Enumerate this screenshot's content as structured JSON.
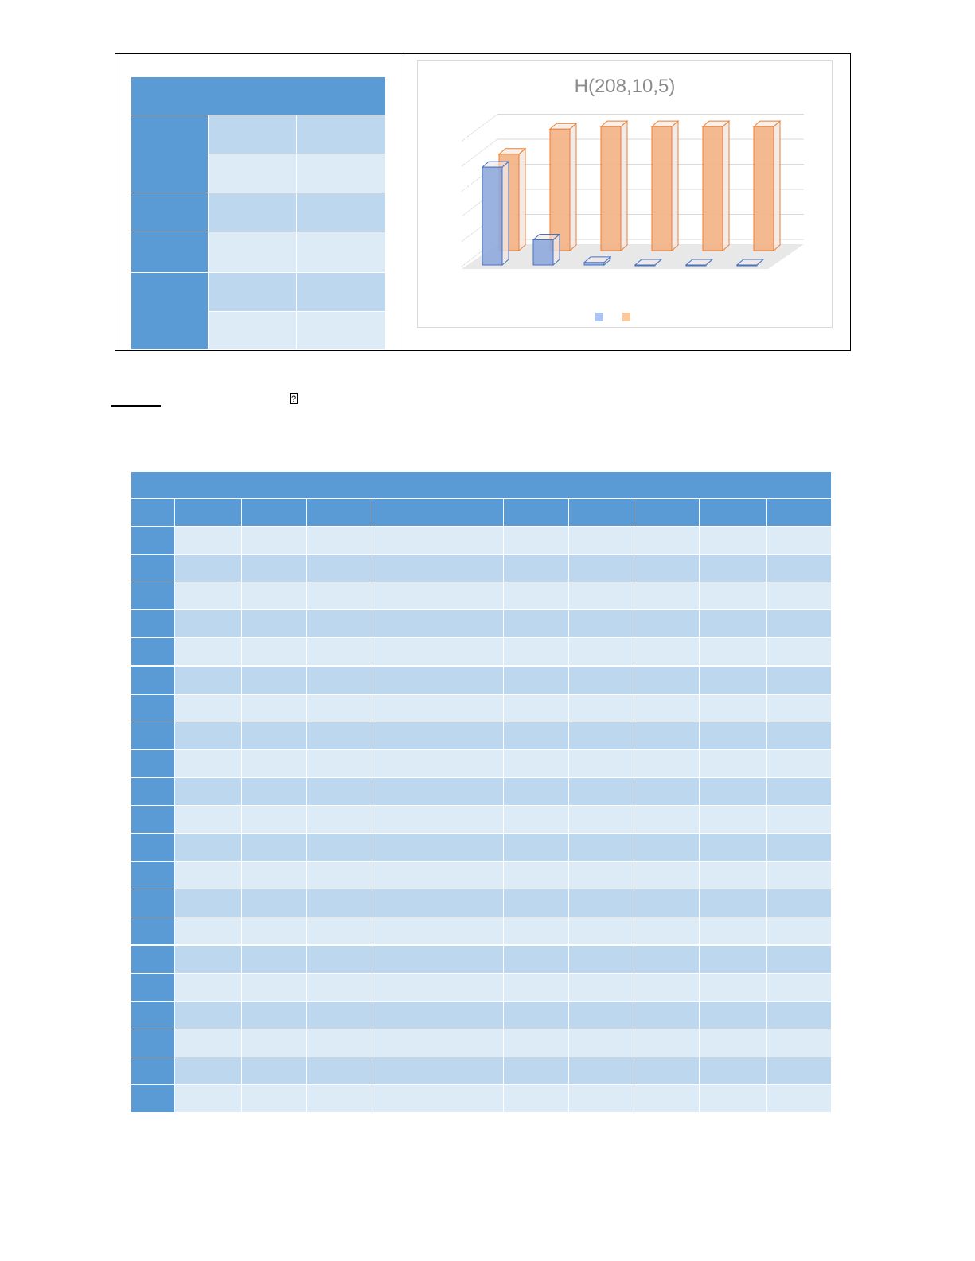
{
  "colors": {
    "header": "#5b9bd5",
    "row_dark": "#bdd7ee",
    "row_light": "#ddebf7",
    "series_blue": "#8faadc",
    "series_orange": "#f4b183"
  },
  "note_icon": "missing-glyph-icon",
  "note_glyph": "?",
  "chart_data": {
    "type": "bar",
    "style": "3d-column",
    "title": "H(208,10,5)",
    "categories": [
      "",
      "",
      "",
      "",
      "",
      ""
    ],
    "series": [
      {
        "color": "#4472c4",
        "values": [
          3.9,
          1.0,
          0.1,
          0,
          0,
          0
        ]
      },
      {
        "color": "#ed7d31",
        "values": [
          3.85,
          4.85,
          4.95,
          4.95,
          4.95,
          4.95
        ]
      }
    ],
    "ylim": [
      0,
      6
    ],
    "grid": true,
    "legend": "bottom"
  }
}
